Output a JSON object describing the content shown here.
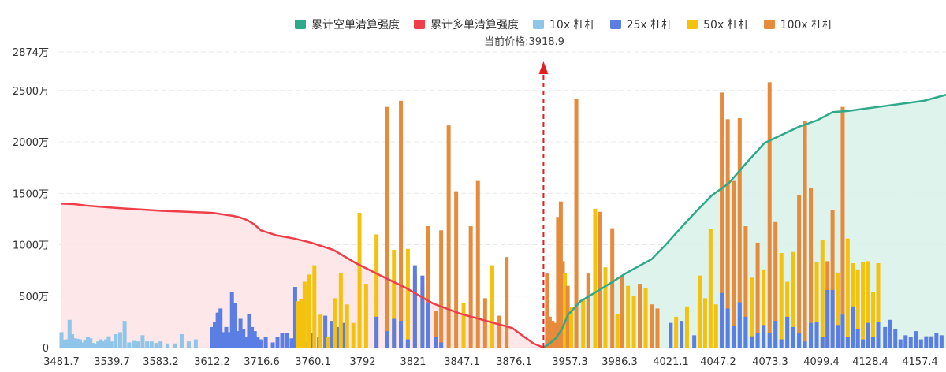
{
  "chart_data": {
    "type": "bar",
    "title": "",
    "legend": [
      "累计空单清算强度",
      "累计多单清算强度",
      "10x 杠杆",
      "25x 杠杆",
      "50x 杠杆",
      "100x 杠杆"
    ],
    "current_price_label": "当前价格:3918.9",
    "current_price": 3918.9,
    "colors": {
      "cum_short": "#2eaa8a",
      "cum_long": "#ef3e4a",
      "lev10": "#8ec5e8",
      "lev25": "#5b7ee5",
      "lev50": "#f4c20d",
      "lev100": "#e68a3c",
      "short_fill": "#d8f1e9",
      "long_fill": "#fde3e5",
      "marker": "#e02020"
    },
    "y_ticks": [
      "0",
      "500万",
      "1000万",
      "1500万",
      "2000万",
      "2500万",
      "2874万"
    ],
    "y_tick_values": [
      0,
      500,
      1000,
      1500,
      2000,
      2500,
      2874
    ],
    "ylim": [
      0,
      2874
    ],
    "y_unit": "万",
    "x_ticks": [
      "3481.7",
      "3539.7",
      "3583.2",
      "3612.2",
      "3716.6",
      "3760.1",
      "3792",
      "3821",
      "3847.1",
      "3876.1",
      "3957.3",
      "3986.3",
      "4021.1",
      "4047.2",
      "4073.3",
      "4099.4",
      "4128.4",
      "4157.4"
    ],
    "grid": true,
    "legend_position": "top-center",
    "series": [
      {
        "name": "10x 杠杆",
        "values": [
          150,
          70,
          80,
          270,
          130,
          90,
          85,
          80,
          50,
          70,
          100,
          90,
          45,
          30,
          60,
          80,
          60,
          80,
          110,
          60,
          130,
          150,
          260,
          50,
          65,
          60,
          120,
          60,
          60,
          45,
          60,
          40,
          40,
          130,
          60,
          80
        ]
      },
      {
        "name": "25x 杠杆",
        "values": [
          0,
          0,
          0,
          0,
          0,
          0,
          0,
          0,
          0,
          0,
          0,
          0,
          0,
          0,
          0,
          0,
          0,
          0,
          0,
          0,
          0,
          0,
          0,
          0,
          0,
          0,
          0,
          0,
          0,
          0,
          0,
          0,
          0,
          0,
          0,
          0,
          0,
          0,
          200,
          250,
          340,
          380,
          150,
          200,
          150,
          540,
          430,
          160,
          280,
          180,
          100,
          330,
          200,
          160,
          100,
          80,
          100,
          50,
          0,
          100,
          140,
          140,
          90,
          100,
          70,
          50,
          140,
          100,
          310,
          260,
          200,
          240,
          0,
          0,
          0,
          0,
          300,
          230,
          200,
          230,
          800,
          0,
          0,
          700,
          0,
          440,
          100,
          0,
          50,
          0,
          0,
          0,
          0,
          0,
          0,
          0,
          0,
          0,
          0,
          0,
          0,
          0,
          0,
          0,
          0,
          0,
          0,
          0,
          0,
          0,
          0,
          0,
          0,
          0,
          0,
          0,
          0,
          0,
          0,
          0,
          0,
          0,
          0,
          0,
          0,
          0,
          0,
          0,
          0,
          0,
          0,
          0,
          0,
          0,
          0,
          0,
          0,
          0,
          0,
          0,
          0,
          0,
          0,
          0,
          0,
          0,
          0,
          0,
          240,
          60,
          400,
          120,
          200,
          80,
          40,
          280,
          160,
          90,
          440,
          160,
          80,
          430,
          110,
          140,
          220,
          140,
          260,
          80,
          300,
          200,
          140,
          60,
          240,
          0,
          250,
          100,
          560,
          560,
          220,
          320,
          100,
          400,
          180,
          80,
          240,
          100,
          250,
          200,
          270,
          180,
          80,
          120,
          100,
          160,
          80,
          110,
          110,
          140,
          120,
          70,
          220,
          140,
          310,
          110,
          100,
          100,
          60,
          80,
          760,
          530,
          360,
          380,
          360,
          300,
          80,
          510
        ]
      },
      {
        "name": "50x 杠杆",
        "values": [
          0,
          0,
          0,
          0,
          0,
          0,
          0,
          0,
          0,
          0,
          0,
          0,
          0,
          0,
          0,
          0,
          0,
          0,
          0,
          0,
          0,
          0,
          0,
          0,
          0,
          0,
          0,
          0,
          0,
          0,
          0,
          0,
          0,
          0,
          0,
          0,
          0,
          0,
          0,
          0,
          0,
          0,
          0,
          0,
          0,
          0,
          0,
          0,
          0,
          0,
          0,
          0,
          0,
          0,
          0,
          0,
          0,
          0,
          0,
          0,
          0,
          0,
          0,
          0,
          0,
          0,
          0,
          0,
          0,
          0,
          0,
          0,
          0,
          0,
          0,
          0,
          0,
          0,
          0,
          0,
          0,
          0,
          0,
          0,
          0,
          0,
          0,
          0,
          0,
          0,
          0,
          0,
          0,
          0,
          0,
          0,
          0,
          0,
          0,
          0,
          0,
          0,
          0,
          0,
          0,
          0,
          0,
          0,
          0,
          0,
          0,
          0,
          0,
          0,
          0,
          0,
          0,
          0,
          0,
          0,
          0,
          0,
          0,
          0,
          0,
          0,
          0,
          0,
          0,
          0,
          0,
          0,
          0,
          0,
          0,
          0,
          0,
          0,
          0,
          0,
          0,
          0,
          0,
          0,
          0,
          0,
          0,
          0,
          0,
          0,
          0,
          0,
          0,
          0,
          0,
          0,
          0,
          0,
          0,
          0,
          0,
          0,
          0,
          0,
          0,
          0,
          0,
          0,
          0,
          0,
          0,
          0,
          0,
          0,
          0,
          0,
          0,
          0,
          0,
          0,
          0,
          0,
          0,
          0,
          0,
          0,
          0,
          0,
          0,
          0,
          0,
          0,
          0,
          0,
          0,
          0,
          0,
          0,
          0,
          0,
          0,
          0,
          0,
          0,
          0,
          0,
          0,
          0,
          0,
          0,
          0,
          0,
          0,
          0,
          0,
          0,
          0,
          0
        ]
      },
      {
        "name": "100x 杠杆",
        "values": [
          0,
          0,
          0,
          0,
          0,
          0,
          0,
          0,
          0,
          0,
          0,
          0,
          0,
          0,
          0,
          0,
          0,
          0,
          0,
          0,
          0,
          0,
          0,
          0,
          0,
          0,
          0,
          0,
          0,
          0,
          0,
          0,
          0,
          0,
          0,
          0,
          0,
          0,
          0,
          0,
          0,
          0,
          0,
          0,
          0,
          0,
          0,
          0,
          0,
          0,
          0,
          0,
          0,
          0,
          0,
          0,
          0,
          0,
          0,
          0,
          0,
          0,
          0,
          0,
          0,
          0,
          0,
          0,
          0,
          0,
          0,
          0,
          0,
          0,
          0,
          0,
          0,
          0,
          0,
          0,
          0,
          0,
          0,
          0,
          0,
          0,
          0,
          0,
          0,
          0,
          0,
          0,
          0,
          0,
          0,
          0,
          0,
          0,
          0,
          0,
          0,
          0,
          0,
          0,
          0,
          0,
          0,
          0,
          0,
          0,
          0,
          0,
          0,
          0,
          0,
          0,
          0,
          0,
          0,
          0,
          0,
          0,
          0,
          0,
          0,
          0,
          0,
          0,
          0,
          0,
          0,
          0,
          0,
          0,
          0,
          0,
          0,
          0,
          0,
          0,
          0,
          0,
          0,
          0,
          0,
          0,
          0,
          0,
          0,
          0,
          0,
          0,
          0,
          0,
          0,
          0,
          0,
          0,
          0,
          0,
          0,
          0,
          0,
          0,
          0,
          0,
          0,
          0,
          0,
          0,
          0,
          0,
          0,
          0,
          0,
          0,
          0,
          0,
          0,
          0,
          0,
          0,
          0,
          0,
          0,
          0,
          0,
          0,
          0,
          0,
          0,
          0,
          0,
          0,
          0,
          0,
          0,
          0,
          0,
          0,
          0,
          0,
          0,
          0,
          0,
          0,
          0,
          0,
          0,
          0,
          0,
          0,
          0,
          0,
          0,
          0,
          0,
          0
        ]
      },
      {
        "name": "累计多单清算强度",
        "x_range": [
          3481.7,
          3918.9
        ],
        "values": [
          1400,
          1395,
          1380,
          1370,
          1360,
          1350,
          1340,
          1330,
          1320,
          1310,
          1300,
          1290,
          1280,
          1265,
          1240,
          1200,
          1140,
          1090,
          1060,
          1020,
          950,
          820,
          700,
          580,
          430,
          330,
          260,
          190,
          110,
          40,
          0
        ]
      },
      {
        "name": "累计空单清算强度",
        "x_range": [
          3918.9,
          4186.4
        ],
        "values": [
          0,
          40,
          90,
          180,
          320,
          450,
          540,
          630,
          720,
          790,
          860,
          990,
          1150,
          1320,
          1480,
          1600,
          1800,
          1990,
          2070,
          2150,
          2210,
          2290,
          2300,
          2320,
          2340,
          2360,
          2380,
          2400,
          2440,
          2480,
          2510
        ]
      }
    ]
  }
}
